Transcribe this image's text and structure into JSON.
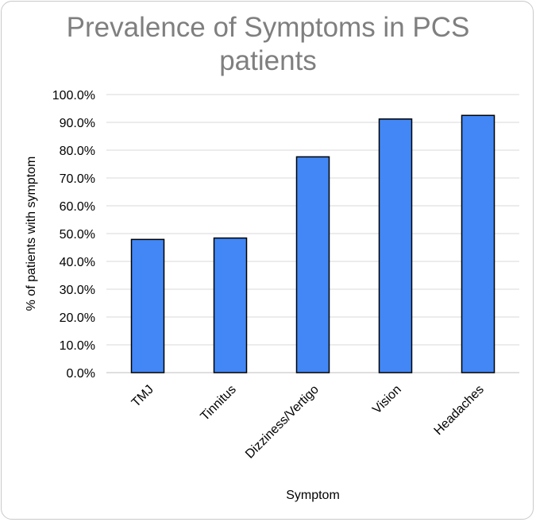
{
  "chart_data": {
    "type": "bar",
    "title_lines": [
      "Prevalence of Symptoms in PCS",
      "patients"
    ],
    "xlabel": "Symptom",
    "ylabel": "% of patients with symptom",
    "categories": [
      "TMJ",
      "Tinnitus",
      "Dizziness/Vertigo",
      "Vision",
      "Headaches"
    ],
    "values": [
      47.9,
      48.4,
      77.6,
      91.2,
      92.5
    ],
    "ylim": [
      0,
      100
    ],
    "yticks": [
      "0.0%",
      "10.0%",
      "20.0%",
      "30.0%",
      "40.0%",
      "50.0%",
      "60.0%",
      "70.0%",
      "80.0%",
      "90.0%",
      "100.0%"
    ],
    "grid": true,
    "legend": "none",
    "colors": {
      "bar_fill": "#4287f5",
      "bar_stroke": "#000000",
      "grid": "#d9d9d9",
      "title": "#7f7f7f"
    }
  }
}
